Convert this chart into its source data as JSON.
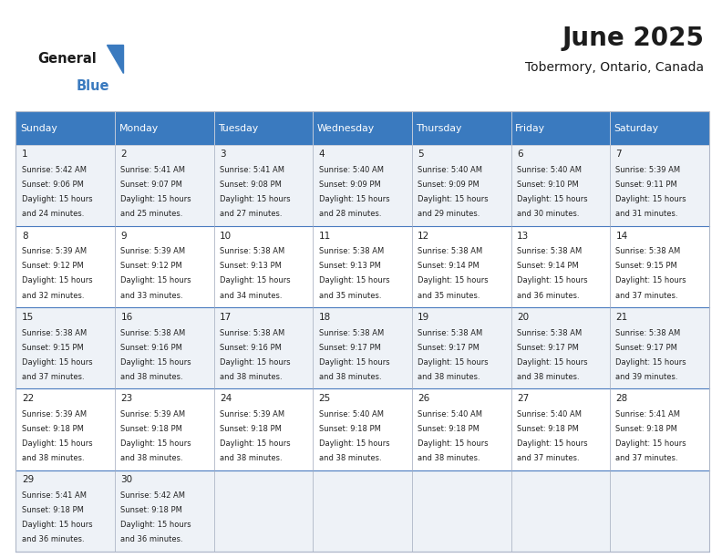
{
  "title": "June 2025",
  "subtitle": "Tobermory, Ontario, Canada",
  "header_color": "#3a7abf",
  "header_text_color": "#ffffff",
  "cell_bg_color_odd": "#eef2f7",
  "cell_bg_color_even": "#ffffff",
  "border_color": "#b0b8c8",
  "row_divider_color": "#4a7bbf",
  "days_of_week": [
    "Sunday",
    "Monday",
    "Tuesday",
    "Wednesday",
    "Thursday",
    "Friday",
    "Saturday"
  ],
  "calendar_data": [
    [
      {
        "day": "1",
        "sunrise": "Sunrise: 5:42 AM",
        "sunset": "Sunset: 9:06 PM",
        "daylight1": "Daylight: 15 hours",
        "daylight2": "and 24 minutes."
      },
      {
        "day": "2",
        "sunrise": "Sunrise: 5:41 AM",
        "sunset": "Sunset: 9:07 PM",
        "daylight1": "Daylight: 15 hours",
        "daylight2": "and 25 minutes."
      },
      {
        "day": "3",
        "sunrise": "Sunrise: 5:41 AM",
        "sunset": "Sunset: 9:08 PM",
        "daylight1": "Daylight: 15 hours",
        "daylight2": "and 27 minutes."
      },
      {
        "day": "4",
        "sunrise": "Sunrise: 5:40 AM",
        "sunset": "Sunset: 9:09 PM",
        "daylight1": "Daylight: 15 hours",
        "daylight2": "and 28 minutes."
      },
      {
        "day": "5",
        "sunrise": "Sunrise: 5:40 AM",
        "sunset": "Sunset: 9:09 PM",
        "daylight1": "Daylight: 15 hours",
        "daylight2": "and 29 minutes."
      },
      {
        "day": "6",
        "sunrise": "Sunrise: 5:40 AM",
        "sunset": "Sunset: 9:10 PM",
        "daylight1": "Daylight: 15 hours",
        "daylight2": "and 30 minutes."
      },
      {
        "day": "7",
        "sunrise": "Sunrise: 5:39 AM",
        "sunset": "Sunset: 9:11 PM",
        "daylight1": "Daylight: 15 hours",
        "daylight2": "and 31 minutes."
      }
    ],
    [
      {
        "day": "8",
        "sunrise": "Sunrise: 5:39 AM",
        "sunset": "Sunset: 9:12 PM",
        "daylight1": "Daylight: 15 hours",
        "daylight2": "and 32 minutes."
      },
      {
        "day": "9",
        "sunrise": "Sunrise: 5:39 AM",
        "sunset": "Sunset: 9:12 PM",
        "daylight1": "Daylight: 15 hours",
        "daylight2": "and 33 minutes."
      },
      {
        "day": "10",
        "sunrise": "Sunrise: 5:38 AM",
        "sunset": "Sunset: 9:13 PM",
        "daylight1": "Daylight: 15 hours",
        "daylight2": "and 34 minutes."
      },
      {
        "day": "11",
        "sunrise": "Sunrise: 5:38 AM",
        "sunset": "Sunset: 9:13 PM",
        "daylight1": "Daylight: 15 hours",
        "daylight2": "and 35 minutes."
      },
      {
        "day": "12",
        "sunrise": "Sunrise: 5:38 AM",
        "sunset": "Sunset: 9:14 PM",
        "daylight1": "Daylight: 15 hours",
        "daylight2": "and 35 minutes."
      },
      {
        "day": "13",
        "sunrise": "Sunrise: 5:38 AM",
        "sunset": "Sunset: 9:14 PM",
        "daylight1": "Daylight: 15 hours",
        "daylight2": "and 36 minutes."
      },
      {
        "day": "14",
        "sunrise": "Sunrise: 5:38 AM",
        "sunset": "Sunset: 9:15 PM",
        "daylight1": "Daylight: 15 hours",
        "daylight2": "and 37 minutes."
      }
    ],
    [
      {
        "day": "15",
        "sunrise": "Sunrise: 5:38 AM",
        "sunset": "Sunset: 9:15 PM",
        "daylight1": "Daylight: 15 hours",
        "daylight2": "and 37 minutes."
      },
      {
        "day": "16",
        "sunrise": "Sunrise: 5:38 AM",
        "sunset": "Sunset: 9:16 PM",
        "daylight1": "Daylight: 15 hours",
        "daylight2": "and 38 minutes."
      },
      {
        "day": "17",
        "sunrise": "Sunrise: 5:38 AM",
        "sunset": "Sunset: 9:16 PM",
        "daylight1": "Daylight: 15 hours",
        "daylight2": "and 38 minutes."
      },
      {
        "day": "18",
        "sunrise": "Sunrise: 5:38 AM",
        "sunset": "Sunset: 9:17 PM",
        "daylight1": "Daylight: 15 hours",
        "daylight2": "and 38 minutes."
      },
      {
        "day": "19",
        "sunrise": "Sunrise: 5:38 AM",
        "sunset": "Sunset: 9:17 PM",
        "daylight1": "Daylight: 15 hours",
        "daylight2": "and 38 minutes."
      },
      {
        "day": "20",
        "sunrise": "Sunrise: 5:38 AM",
        "sunset": "Sunset: 9:17 PM",
        "daylight1": "Daylight: 15 hours",
        "daylight2": "and 38 minutes."
      },
      {
        "day": "21",
        "sunrise": "Sunrise: 5:38 AM",
        "sunset": "Sunset: 9:17 PM",
        "daylight1": "Daylight: 15 hours",
        "daylight2": "and 39 minutes."
      }
    ],
    [
      {
        "day": "22",
        "sunrise": "Sunrise: 5:39 AM",
        "sunset": "Sunset: 9:18 PM",
        "daylight1": "Daylight: 15 hours",
        "daylight2": "and 38 minutes."
      },
      {
        "day": "23",
        "sunrise": "Sunrise: 5:39 AM",
        "sunset": "Sunset: 9:18 PM",
        "daylight1": "Daylight: 15 hours",
        "daylight2": "and 38 minutes."
      },
      {
        "day": "24",
        "sunrise": "Sunrise: 5:39 AM",
        "sunset": "Sunset: 9:18 PM",
        "daylight1": "Daylight: 15 hours",
        "daylight2": "and 38 minutes."
      },
      {
        "day": "25",
        "sunrise": "Sunrise: 5:40 AM",
        "sunset": "Sunset: 9:18 PM",
        "daylight1": "Daylight: 15 hours",
        "daylight2": "and 38 minutes."
      },
      {
        "day": "26",
        "sunrise": "Sunrise: 5:40 AM",
        "sunset": "Sunset: 9:18 PM",
        "daylight1": "Daylight: 15 hours",
        "daylight2": "and 38 minutes."
      },
      {
        "day": "27",
        "sunrise": "Sunrise: 5:40 AM",
        "sunset": "Sunset: 9:18 PM",
        "daylight1": "Daylight: 15 hours",
        "daylight2": "and 37 minutes."
      },
      {
        "day": "28",
        "sunrise": "Sunrise: 5:41 AM",
        "sunset": "Sunset: 9:18 PM",
        "daylight1": "Daylight: 15 hours",
        "daylight2": "and 37 minutes."
      }
    ],
    [
      {
        "day": "29",
        "sunrise": "Sunrise: 5:41 AM",
        "sunset": "Sunset: 9:18 PM",
        "daylight1": "Daylight: 15 hours",
        "daylight2": "and 36 minutes."
      },
      {
        "day": "30",
        "sunrise": "Sunrise: 5:42 AM",
        "sunset": "Sunset: 9:18 PM",
        "daylight1": "Daylight: 15 hours",
        "daylight2": "and 36 minutes."
      },
      null,
      null,
      null,
      null,
      null
    ]
  ]
}
